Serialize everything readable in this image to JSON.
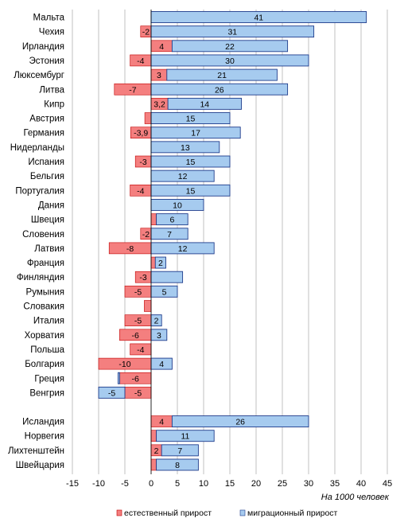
{
  "chart_data": {
    "type": "bar",
    "orientation": "horizontal",
    "stacking": "diverging",
    "title": "",
    "xlabel": "",
    "ylabel": "",
    "note": "На 1000 человек",
    "xlim": [
      -15,
      45
    ],
    "xticks": [
      -15,
      -10,
      -5,
      0,
      5,
      10,
      15,
      20,
      25,
      30,
      35,
      40,
      45
    ],
    "grid": "vertical",
    "legend_position": "bottom",
    "categories": [
      "Мальта",
      "Чехия",
      "Ирландия",
      "Эстония",
      "Люксембург",
      "Литва",
      "Кипр",
      "Австрия",
      "Германия",
      "Нидерланды",
      "Испания",
      "Бельгия",
      "Португалия",
      "Дания",
      "Швеция",
      "Словения",
      "Латвия",
      "Франция",
      "Финляндия",
      "Румыния",
      "Словакия",
      "Италия",
      "Хорватия",
      "Польша",
      "Болгария",
      "Греция",
      "Венгрия",
      "Исландия",
      "Норвегия",
      "Лихтенштейн",
      "Швейцария"
    ],
    "group_gap_before_index": 27,
    "series": [
      {
        "name": "естественный прирост",
        "color": "#f47f7f",
        "values": [
          0,
          -2,
          4,
          -4,
          3,
          -7,
          3.2,
          -1.2,
          -3.9,
          0,
          -3,
          0,
          -4,
          0,
          1,
          -2,
          -8,
          0.8,
          -3,
          -5,
          -1.3,
          -5,
          -6,
          -4,
          -10,
          -6,
          -5,
          4,
          1,
          2,
          1
        ],
        "labels": [
          "",
          "-2",
          "4",
          "-4",
          "3",
          "-7",
          "3,2",
          "",
          "-3,9",
          "",
          "-3",
          "",
          "-4",
          "",
          "",
          "-2",
          "-8",
          "",
          "-3",
          "-5",
          "",
          "-5",
          "-6",
          "-4",
          "-10",
          "-6",
          "-5",
          "4",
          "",
          "2",
          ""
        ]
      },
      {
        "name": "миграционный прирост",
        "color": "#a6cbef",
        "values": [
          41,
          31,
          22,
          30,
          21,
          26,
          14,
          15,
          17,
          13,
          15,
          12,
          15,
          10,
          6,
          7,
          12,
          2,
          6,
          5,
          0,
          2,
          3,
          0,
          4,
          -0.3,
          -5,
          26,
          11,
          7,
          8
        ],
        "labels": [
          "41",
          "31",
          "22",
          "30",
          "21",
          "26",
          "14",
          "15",
          "17",
          "13",
          "15",
          "12",
          "15",
          "10",
          "6",
          "7",
          "12",
          "2",
          "",
          "5",
          "",
          "2",
          "3",
          "",
          "4",
          "",
          "-5",
          "26",
          "11",
          "7",
          "8"
        ]
      }
    ]
  }
}
